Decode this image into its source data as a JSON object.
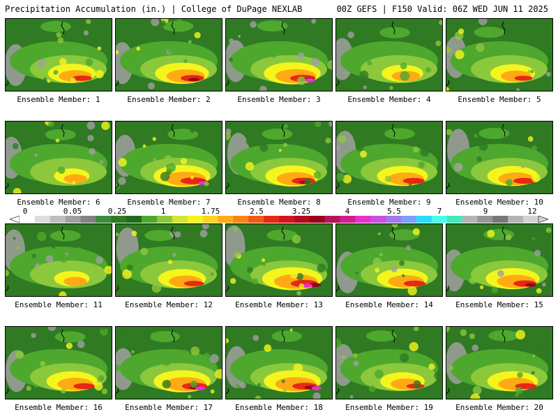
{
  "header": {
    "left": "Precipitation Accumulation (in.) | College of DuPage NEXLAB",
    "right": "00Z GEFS | F150 Valid: 06Z WED JUN 11 2025"
  },
  "members": [
    {
      "label": "Ensemble Member: 1",
      "intensity": 0.55
    },
    {
      "label": "Ensemble Member: 2",
      "intensity": 0.65
    },
    {
      "label": "Ensemble Member: 3",
      "intensity": 0.7
    },
    {
      "label": "Ensemble Member: 4",
      "intensity": 0.45
    },
    {
      "label": "Ensemble Member: 5",
      "intensity": 0.5
    },
    {
      "label": "Ensemble Member: 6",
      "intensity": 0.35
    },
    {
      "label": "Ensemble Member: 7",
      "intensity": 0.7
    },
    {
      "label": "Ensemble Member: 8",
      "intensity": 0.65
    },
    {
      "label": "Ensemble Member: 9",
      "intensity": 0.6
    },
    {
      "label": "Ensemble Member: 10",
      "intensity": 0.6
    },
    {
      "label": "Ensemble Member: 11",
      "intensity": 0.35
    },
    {
      "label": "Ensemble Member: 12",
      "intensity": 0.55
    },
    {
      "label": "Ensemble Member: 13",
      "intensity": 0.75
    },
    {
      "label": "Ensemble Member: 14",
      "intensity": 0.6
    },
    {
      "label": "Ensemble Member: 15",
      "intensity": 0.65
    },
    {
      "label": "Ensemble Member: 16",
      "intensity": 0.6
    },
    {
      "label": "Ensemble Member: 17",
      "intensity": 0.7
    },
    {
      "label": "Ensemble Member: 18",
      "intensity": 0.7
    },
    {
      "label": "Ensemble Member: 19",
      "intensity": 0.5
    },
    {
      "label": "Ensemble Member: 20",
      "intensity": 0.6
    }
  ],
  "scale": {
    "labels": [
      "0",
      "0.05",
      "0.25",
      "1",
      "1.75",
      "2.5",
      "3.25",
      "4",
      "5.5",
      "7",
      "9",
      "12"
    ],
    "colors": [
      "#ffffff",
      "#dcdcdc",
      "#bebebe",
      "#a0a0a0",
      "#828282",
      "#3c8c3c",
      "#2f7a22",
      "#1e6b1e",
      "#4ea82e",
      "#8cc83c",
      "#d2e632",
      "#f5f51e",
      "#ffd21e",
      "#ffaa14",
      "#ff8214",
      "#f05a14",
      "#e62814",
      "#d2141e",
      "#b40a1e",
      "#96051e",
      "#b4145a",
      "#d21e8c",
      "#e632c8",
      "#c850dc",
      "#a078f0",
      "#78a0ff",
      "#28dcff",
      "#46ffeb",
      "#46e6be",
      "#b4b4b4",
      "#969696",
      "#787878",
      "#b4b4b4",
      "#d2d2d2"
    ]
  }
}
